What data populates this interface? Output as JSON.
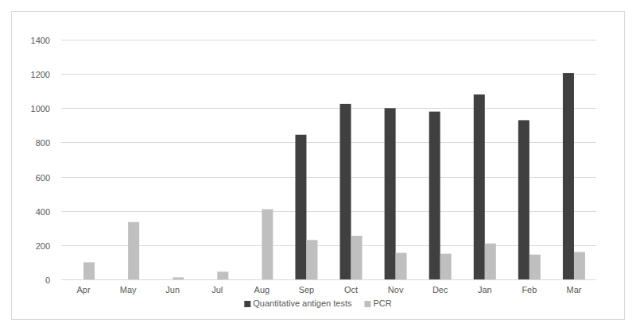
{
  "chart_data": {
    "type": "bar",
    "categories": [
      "Apr",
      "May",
      "Jun",
      "Jul",
      "Aug",
      "Sep",
      "Oct",
      "Nov",
      "Dec",
      "Jan",
      "Feb",
      "Mar"
    ],
    "series": [
      {
        "name": "Quantitative antigen tests",
        "color": "#404040",
        "values": [
          null,
          null,
          null,
          null,
          null,
          845,
          1025,
          1000,
          980,
          1080,
          930,
          1205
        ]
      },
      {
        "name": "PCR",
        "color": "#bfbfbf",
        "values": [
          100,
          335,
          12,
          45,
          410,
          230,
          255,
          155,
          150,
          210,
          145,
          160
        ]
      }
    ],
    "ylim": [
      0,
      1400
    ],
    "yticks": [
      0,
      200,
      400,
      600,
      800,
      1000,
      1200,
      1400
    ],
    "grid": true,
    "legend": "bottom"
  }
}
